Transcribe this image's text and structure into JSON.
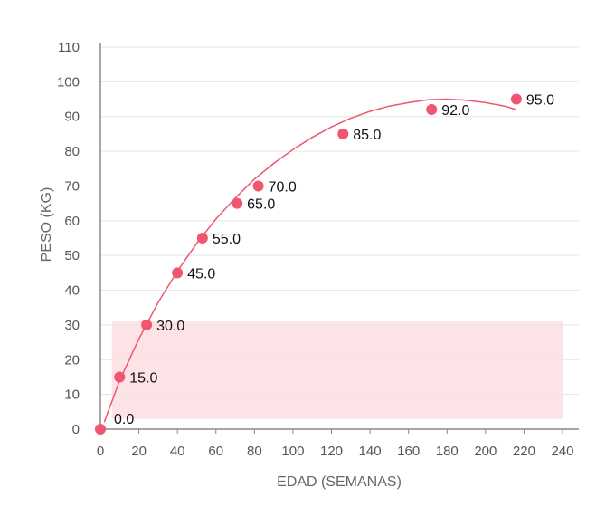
{
  "chart_data": {
    "type": "scatter",
    "title": "",
    "xlabel": "EDAD (SEMANAS)",
    "ylabel": "PESO (KG)",
    "xlim": [
      0,
      240
    ],
    "ylim": [
      0,
      110
    ],
    "xticks": [
      0,
      20,
      40,
      60,
      80,
      100,
      120,
      140,
      160,
      180,
      200,
      220,
      240
    ],
    "yticks": [
      0,
      10,
      20,
      30,
      40,
      50,
      60,
      70,
      80,
      90,
      100,
      110
    ],
    "grid": "horizontal",
    "series": [
      {
        "points": [
          {
            "x": 0,
            "y": 0,
            "label": "0.0"
          },
          {
            "x": 10,
            "y": 15,
            "label": "15.0"
          },
          {
            "x": 24,
            "y": 30,
            "label": "30.0"
          },
          {
            "x": 40,
            "y": 45,
            "label": "45.0"
          },
          {
            "x": 53,
            "y": 55,
            "label": "55.0"
          },
          {
            "x": 71,
            "y": 65,
            "label": "65.0"
          },
          {
            "x": 82,
            "y": 70,
            "label": "70.0"
          },
          {
            "x": 126,
            "y": 85,
            "label": "85.0"
          },
          {
            "x": 172,
            "y": 92,
            "label": "92.0"
          },
          {
            "x": 216,
            "y": 95,
            "label": "95.0"
          }
        ]
      }
    ],
    "trend_curve": [
      [
        2,
        2
      ],
      [
        10,
        14
      ],
      [
        20,
        26
      ],
      [
        30,
        36.5
      ],
      [
        40,
        45.5
      ],
      [
        50,
        53.5
      ],
      [
        60,
        60.5
      ],
      [
        70,
        66.5
      ],
      [
        80,
        72
      ],
      [
        90,
        76.5
      ],
      [
        100,
        80.5
      ],
      [
        110,
        84
      ],
      [
        120,
        87
      ],
      [
        130,
        89.5
      ],
      [
        140,
        91.5
      ],
      [
        150,
        93
      ],
      [
        160,
        94
      ],
      [
        170,
        94.8
      ],
      [
        180,
        95
      ],
      [
        190,
        94.7
      ],
      [
        200,
        94
      ],
      [
        210,
        93
      ],
      [
        216,
        92
      ]
    ],
    "shaded_region": {
      "x": [
        6,
        240
      ],
      "y": [
        3,
        31
      ]
    },
    "colors": {
      "point": "#f0566e",
      "curve": "#f0566e",
      "band": "#fde3e5",
      "grid": "#e6e6e6",
      "axis": "#888888"
    }
  }
}
